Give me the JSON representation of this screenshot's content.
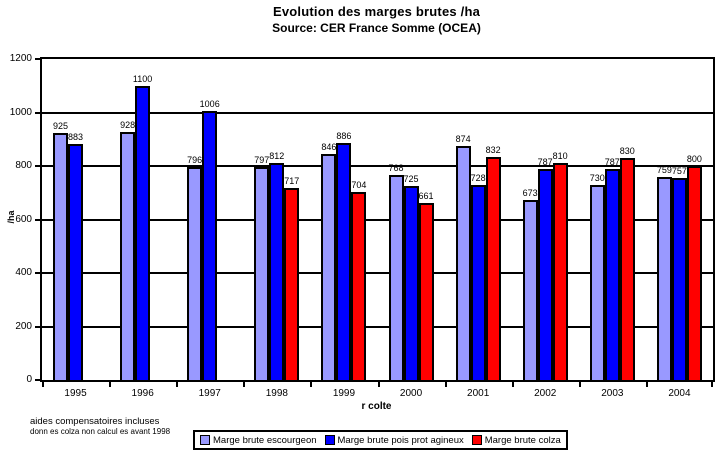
{
  "header": {
    "title": "Evolution des marges brutes /ha",
    "source": "Source: CER France Somme (OCEA)"
  },
  "footnote": {
    "line1": "aides compensatoires incluses",
    "line2": "donn es colza non calcul es avant 1998"
  },
  "chart_data": {
    "type": "bar",
    "title": "Evolution des marges brutes /ha",
    "subtitle": "Source: CER France Somme (OCEA)",
    "xlabel": "r colte",
    "ylabel": "/ha",
    "ylim": [
      0,
      1200
    ],
    "ytick_step": 200,
    "grid": true,
    "legend_position": "bottom",
    "categories": [
      "1995",
      "1996",
      "1997",
      "1998",
      "1999",
      "2000",
      "2001",
      "2002",
      "2003",
      "2004"
    ],
    "series": [
      {
        "name": "Marge brute escourgeon",
        "color": "#9999FF",
        "values": [
          925,
          928,
          796,
          797,
          846,
          768,
          874,
          673,
          730,
          759
        ]
      },
      {
        "name": "Marge brute pois prot agineux",
        "color": "#0000FF",
        "values": [
          883,
          1100,
          1006,
          812,
          886,
          725,
          728,
          787,
          787,
          757
        ]
      },
      {
        "name": "Marge brute colza",
        "color": "#FF0000",
        "values": [
          null,
          null,
          null,
          717,
          704,
          661,
          832,
          810,
          830,
          800
        ]
      }
    ]
  }
}
